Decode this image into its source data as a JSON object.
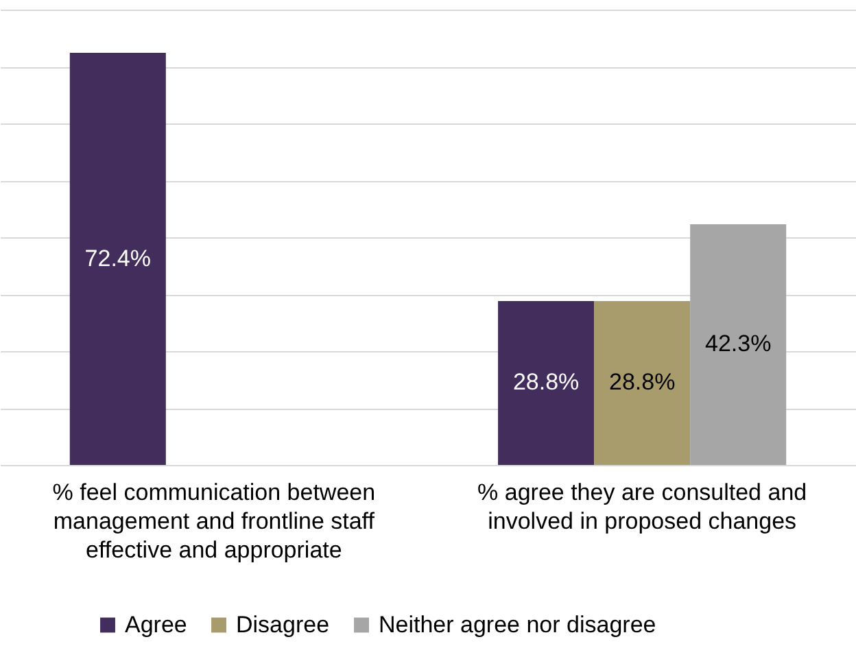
{
  "chart_data": {
    "type": "bar",
    "categories": [
      "% feel communication between management and frontline staff effective and appropriate",
      "% agree they are consulted and involved in proposed changes"
    ],
    "series": [
      {
        "name": "Agree",
        "color": "#422d5c",
        "values": [
          72.4,
          28.8
        ],
        "value_labels": [
          "72.4%",
          "28.8%"
        ]
      },
      {
        "name": "Disagree",
        "color": "#a89c6c",
        "values": [
          null,
          28.8
        ],
        "value_labels": [
          null,
          "28.8%"
        ]
      },
      {
        "name": "Neither agree nor disagree",
        "color": "#a6a6a6",
        "values": [
          null,
          42.3
        ],
        "value_labels": [
          null,
          "42.3%"
        ]
      }
    ],
    "ylim": [
      0,
      80
    ],
    "yticks": [
      {
        "value": 0,
        "label": null
      },
      {
        "value": 10,
        "label": null
      },
      {
        "value": 20,
        "label": null
      },
      {
        "value": 30,
        "label": null
      },
      {
        "value": 40,
        "label": null
      },
      {
        "value": 50,
        "label": null
      },
      {
        "value": 60,
        "label": null
      },
      {
        "value": 70,
        "label": null
      },
      {
        "value": 80,
        "label": null
      }
    ],
    "grid": "y",
    "tick_labels": "x",
    "legend": "bottom"
  }
}
